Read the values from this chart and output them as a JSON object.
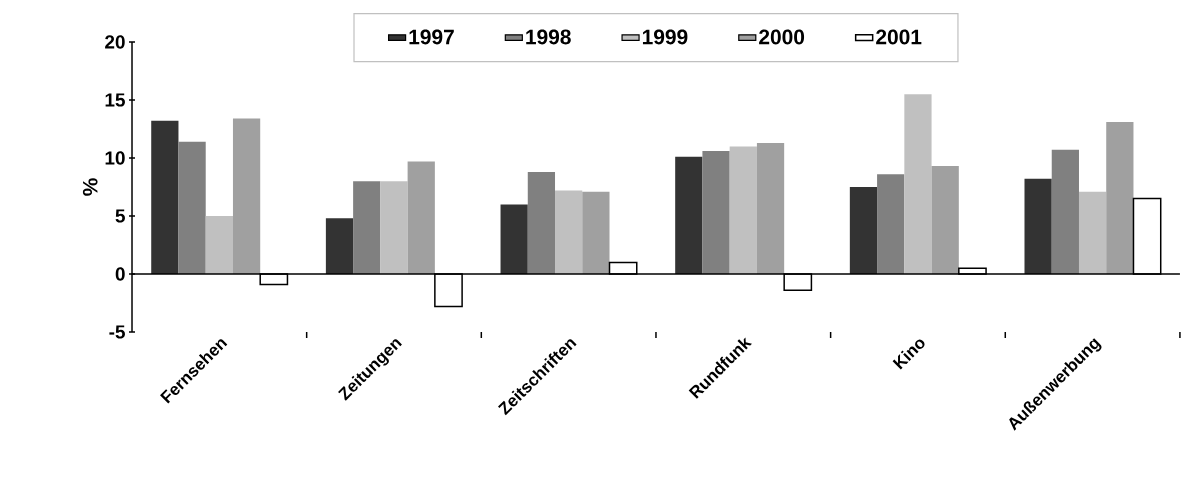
{
  "chart_data": {
    "type": "bar",
    "ylabel": "%",
    "categories": [
      "Fernsehen",
      "Zeitungen",
      "Zeitschriften",
      "Rundfunk",
      "Kino",
      "Außenwerbung"
    ],
    "ylim": [
      -5,
      20
    ],
    "yticks": [
      -5,
      0,
      5,
      10,
      15,
      20
    ],
    "legend": "top",
    "series": [
      {
        "name": "1997",
        "color": "#333333",
        "values": [
          13.2,
          4.8,
          6.0,
          10.1,
          7.5,
          8.2
        ]
      },
      {
        "name": "1998",
        "color": "#808080",
        "values": [
          11.4,
          8.0,
          8.8,
          10.6,
          8.6,
          10.7
        ]
      },
      {
        "name": "1999",
        "color": "#c0c0c0",
        "values": [
          5.0,
          8.0,
          7.2,
          11.0,
          15.5,
          7.1
        ]
      },
      {
        "name": "2000",
        "color": "#a0a0a0",
        "values": [
          13.4,
          9.7,
          7.1,
          11.3,
          9.3,
          13.1
        ]
      },
      {
        "name": "2001",
        "color": "#ffffff",
        "values": [
          -0.9,
          -2.8,
          1.0,
          -1.4,
          0.5,
          6.5
        ]
      }
    ]
  }
}
